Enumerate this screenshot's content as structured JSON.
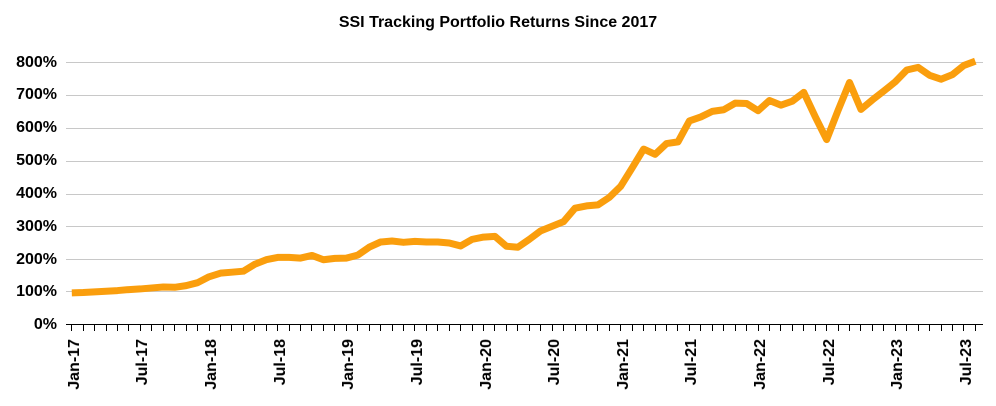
{
  "page": {
    "background": "#FFFFFF"
  },
  "chart_data": {
    "type": "line",
    "title": "SSI Tracking Portfolio Returns Since 2017",
    "xlabel": "",
    "ylabel": "",
    "ylim": [
      0,
      800
    ],
    "ytick_step": 100,
    "ytick_suffix": "%",
    "y_tick_labels": [
      "0%",
      "100%",
      "200%",
      "300%",
      "400%",
      "500%",
      "600%",
      "700%",
      "800%"
    ],
    "x_tick_label_every": 6,
    "x_tick_labels_shown": [
      "Jan-17",
      "Jul-17",
      "Jan-18",
      "Jul-18",
      "Jan-19",
      "Jul-19",
      "Jan-20",
      "Jul-20",
      "Jan-21",
      "Jul-21",
      "Jan-22",
      "Jul-22",
      "Jan-23",
      "Jul-23"
    ],
    "grid": true,
    "legend": false,
    "line_color": "#FA9E0D",
    "grid_color": "#C8C8C8",
    "axis_color": "#000000",
    "text_color": "#000000",
    "categories": [
      "Jan-17",
      "Feb-17",
      "Mar-17",
      "Apr-17",
      "May-17",
      "Jun-17",
      "Jul-17",
      "Aug-17",
      "Sep-17",
      "Oct-17",
      "Nov-17",
      "Dec-17",
      "Jan-18",
      "Feb-18",
      "Mar-18",
      "Apr-18",
      "May-18",
      "Jun-18",
      "Jul-18",
      "Aug-18",
      "Sep-18",
      "Oct-18",
      "Nov-18",
      "Dec-18",
      "Jan-19",
      "Feb-19",
      "Mar-19",
      "Apr-19",
      "May-19",
      "Jun-19",
      "Jul-19",
      "Aug-19",
      "Sep-19",
      "Oct-19",
      "Nov-19",
      "Dec-19",
      "Jan-20",
      "Feb-20",
      "Mar-20",
      "Apr-20",
      "May-20",
      "Jun-20",
      "Jul-20",
      "Aug-20",
      "Sep-20",
      "Oct-20",
      "Nov-20",
      "Dec-20",
      "Jan-21",
      "Feb-21",
      "Mar-21",
      "Apr-21",
      "May-21",
      "Jun-21",
      "Jul-21",
      "Aug-21",
      "Sep-21",
      "Oct-21",
      "Nov-21",
      "Dec-21",
      "Jan-22",
      "Feb-22",
      "Mar-22",
      "Apr-22",
      "May-22",
      "Jun-22",
      "Jul-22",
      "Aug-22",
      "Sep-22",
      "Oct-22",
      "Nov-22",
      "Dec-22",
      "Jan-23",
      "Feb-23",
      "Mar-23",
      "Apr-23",
      "May-23",
      "Jun-23",
      "Jul-23",
      "Aug-23"
    ],
    "values": [
      97,
      98,
      100,
      102,
      104,
      107,
      109,
      112,
      115,
      114,
      119,
      128,
      146,
      157,
      160,
      163,
      184,
      198,
      205,
      205,
      203,
      211,
      198,
      202,
      203,
      212,
      236,
      252,
      255,
      251,
      254,
      252,
      252,
      249,
      240,
      260,
      267,
      269,
      239,
      236,
      260,
      286,
      300,
      314,
      355,
      362,
      365,
      388,
      422,
      478,
      535,
      519,
      552,
      557,
      621,
      633,
      650,
      655,
      675,
      674,
      652,
      683,
      669,
      681,
      708,
      634,
      564,
      653,
      738,
      656,
      685,
      712,
      740,
      776,
      784,
      760,
      748,
      762,
      790,
      803
    ]
  }
}
